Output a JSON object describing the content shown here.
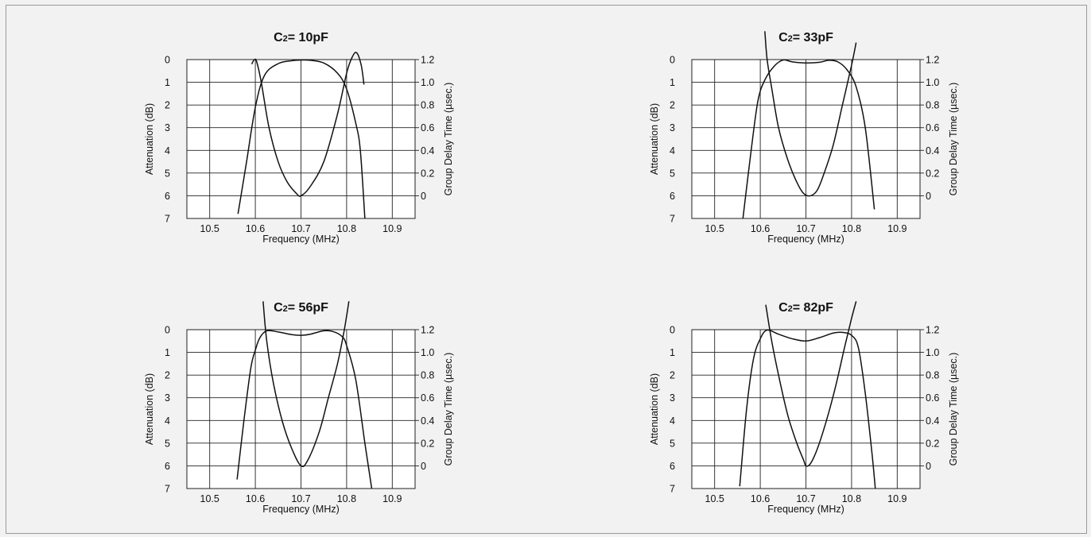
{
  "chart_data": [
    {
      "type": "line",
      "title_main": "C",
      "title_sub": "2",
      "title_rest": "= 10pF",
      "xlabel": "Frequency (MHz)",
      "ylabel_left": "Attenuation (dB)",
      "ylabel_right": "Group Delay Time (µsec.)",
      "x_ticks": [
        "10.5",
        "10.6",
        "10.7",
        "10.8",
        "10.9"
      ],
      "y_left_ticks": [
        "0",
        "1",
        "2",
        "3",
        "4",
        "5",
        "6",
        "7"
      ],
      "y_right_ticks": [
        "1.2",
        "1.0",
        "0.8",
        "0.6",
        "0.4",
        "0.2",
        "0"
      ],
      "xlim": [
        10.45,
        10.95
      ],
      "ylim_left": [
        7,
        0
      ],
      "ylim_right": [
        -0.2,
        1.2
      ],
      "grid": true,
      "series": [
        {
          "axis": "left",
          "points": [
            [
              10.562,
              6.8
            ],
            [
              10.58,
              4.6
            ],
            [
              10.6,
              2.1
            ],
            [
              10.62,
              0.7
            ],
            [
              10.65,
              0.18
            ],
            [
              10.68,
              0.05
            ],
            [
              10.7,
              0.02
            ],
            [
              10.72,
              0.03
            ],
            [
              10.75,
              0.15
            ],
            [
              10.78,
              0.6
            ],
            [
              10.8,
              1.3
            ],
            [
              10.82,
              2.8
            ],
            [
              10.83,
              4.0
            ],
            [
              10.84,
              7.0
            ]
          ]
        },
        {
          "axis": "right",
          "points": [
            [
              10.592,
              1.16
            ],
            [
              10.598,
              1.2
            ],
            [
              10.603,
              1.18
            ],
            [
              10.613,
              1.0
            ],
            [
              10.63,
              0.6
            ],
            [
              10.65,
              0.3
            ],
            [
              10.67,
              0.12
            ],
            [
              10.69,
              0.02
            ],
            [
              10.7,
              0.0
            ],
            [
              10.72,
              0.08
            ],
            [
              10.75,
              0.3
            ],
            [
              10.78,
              0.72
            ],
            [
              10.8,
              1.08
            ],
            [
              10.812,
              1.22
            ],
            [
              10.822,
              1.26
            ],
            [
              10.832,
              1.15
            ],
            [
              10.838,
              0.98
            ]
          ]
        }
      ]
    },
    {
      "type": "line",
      "title_main": "C",
      "title_sub": "2",
      "title_rest": "= 33pF",
      "xlabel": "Frequency (MHz)",
      "ylabel_left": "Attenuation (dB)",
      "ylabel_right": "Group Delay Time (µsec.)",
      "x_ticks": [
        "10.5",
        "10.6",
        "10.7",
        "10.8",
        "10.9"
      ],
      "y_left_ticks": [
        "0",
        "1",
        "2",
        "3",
        "4",
        "5",
        "6",
        "7"
      ],
      "y_right_ticks": [
        "1.2",
        "1.0",
        "0.8",
        "0.6",
        "0.4",
        "0.2",
        "0"
      ],
      "xlim": [
        10.45,
        10.95
      ],
      "ylim_left": [
        7,
        0
      ],
      "ylim_right": [
        -0.2,
        1.2
      ],
      "grid": true,
      "series": [
        {
          "axis": "left",
          "points": [
            [
              10.562,
              7.0
            ],
            [
              10.58,
              4.0
            ],
            [
              10.595,
              1.8
            ],
            [
              10.61,
              0.9
            ],
            [
              10.63,
              0.3
            ],
            [
              10.65,
              0.02
            ],
            [
              10.67,
              0.1
            ],
            [
              10.7,
              0.15
            ],
            [
              10.73,
              0.12
            ],
            [
              10.75,
              0.03
            ],
            [
              10.77,
              0.1
            ],
            [
              10.79,
              0.45
            ],
            [
              10.81,
              1.2
            ],
            [
              10.83,
              3.0
            ],
            [
              10.85,
              6.6
            ]
          ]
        },
        {
          "axis": "right",
          "points": [
            [
              10.61,
              1.45
            ],
            [
              10.615,
              1.2
            ],
            [
              10.625,
              0.95
            ],
            [
              10.64,
              0.6
            ],
            [
              10.66,
              0.32
            ],
            [
              10.68,
              0.12
            ],
            [
              10.695,
              0.02
            ],
            [
              10.71,
              0.0
            ],
            [
              10.725,
              0.05
            ],
            [
              10.74,
              0.2
            ],
            [
              10.76,
              0.45
            ],
            [
              10.78,
              0.8
            ],
            [
              10.8,
              1.15
            ],
            [
              10.81,
              1.35
            ]
          ]
        }
      ]
    },
    {
      "type": "line",
      "title_main": "C",
      "title_sub": "2",
      "title_rest": "= 56pF",
      "xlabel": "Frequency (MHz)",
      "ylabel_left": "Attenuation (dB)",
      "ylabel_right": "Group Delay Time (µsec.)",
      "x_ticks": [
        "10.5",
        "10.6",
        "10.7",
        "10.8",
        "10.9"
      ],
      "y_left_ticks": [
        "0",
        "1",
        "2",
        "3",
        "4",
        "5",
        "6",
        "7"
      ],
      "y_right_ticks": [
        "1.2",
        "1.0",
        "0.8",
        "0.6",
        "0.4",
        "0.2",
        "0"
      ],
      "xlim": [
        10.45,
        10.95
      ],
      "ylim_left": [
        7,
        0
      ],
      "ylim_right": [
        -0.2,
        1.2
      ],
      "grid": true,
      "series": [
        {
          "axis": "left",
          "points": [
            [
              10.56,
              6.6
            ],
            [
              10.575,
              4.0
            ],
            [
              10.59,
              1.7
            ],
            [
              10.6,
              0.9
            ],
            [
              10.61,
              0.35
            ],
            [
              10.625,
              0.05
            ],
            [
              10.65,
              0.1
            ],
            [
              10.68,
              0.22
            ],
            [
              10.7,
              0.25
            ],
            [
              10.72,
              0.2
            ],
            [
              10.75,
              0.05
            ],
            [
              10.77,
              0.08
            ],
            [
              10.79,
              0.3
            ],
            [
              10.8,
              0.7
            ],
            [
              10.82,
              2.2
            ],
            [
              10.84,
              5.0
            ],
            [
              10.855,
              7.0
            ]
          ]
        },
        {
          "axis": "right",
          "points": [
            [
              10.617,
              1.45
            ],
            [
              10.625,
              1.1
            ],
            [
              10.64,
              0.72
            ],
            [
              10.66,
              0.38
            ],
            [
              10.68,
              0.15
            ],
            [
              10.7,
              0.0
            ],
            [
              10.715,
              0.05
            ],
            [
              10.74,
              0.3
            ],
            [
              10.76,
              0.6
            ],
            [
              10.78,
              0.9
            ],
            [
              10.795,
              1.2
            ],
            [
              10.805,
              1.45
            ]
          ]
        }
      ]
    },
    {
      "type": "line",
      "title_main": "C",
      "title_sub": "2",
      "title_rest": "= 82pF",
      "xlabel": "Frequency (MHz)",
      "ylabel_left": "Attenuation (dB)",
      "ylabel_right": "Group Delay Time (µsec.)",
      "x_ticks": [
        "10.5",
        "10.6",
        "10.7",
        "10.8",
        "10.9"
      ],
      "y_left_ticks": [
        "0",
        "1",
        "2",
        "3",
        "4",
        "5",
        "6",
        "7"
      ],
      "y_right_ticks": [
        "1.2",
        "1.0",
        "0.8",
        "0.6",
        "0.4",
        "0.2",
        "0"
      ],
      "xlim": [
        10.45,
        10.95
      ],
      "ylim_left": [
        7,
        0
      ],
      "ylim_right": [
        -0.2,
        1.2
      ],
      "grid": true,
      "series": [
        {
          "axis": "left",
          "points": [
            [
              10.555,
              6.9
            ],
            [
              10.57,
              3.5
            ],
            [
              10.585,
              1.3
            ],
            [
              10.6,
              0.4
            ],
            [
              10.615,
              0.02
            ],
            [
              10.64,
              0.2
            ],
            [
              10.67,
              0.4
            ],
            [
              10.7,
              0.5
            ],
            [
              10.73,
              0.35
            ],
            [
              10.76,
              0.15
            ],
            [
              10.78,
              0.12
            ],
            [
              10.8,
              0.25
            ],
            [
              10.815,
              0.8
            ],
            [
              10.83,
              2.8
            ],
            [
              10.845,
              5.5
            ],
            [
              10.852,
              7.0
            ]
          ]
        },
        {
          "axis": "right",
          "points": [
            [
              10.612,
              1.42
            ],
            [
              10.625,
              1.1
            ],
            [
              10.64,
              0.8
            ],
            [
              10.66,
              0.45
            ],
            [
              10.68,
              0.2
            ],
            [
              10.695,
              0.05
            ],
            [
              10.7,
              0.0
            ],
            [
              10.71,
              0.02
            ],
            [
              10.725,
              0.15
            ],
            [
              10.745,
              0.4
            ],
            [
              10.765,
              0.7
            ],
            [
              10.785,
              1.05
            ],
            [
              10.8,
              1.3
            ],
            [
              10.81,
              1.45
            ]
          ]
        }
      ]
    }
  ]
}
